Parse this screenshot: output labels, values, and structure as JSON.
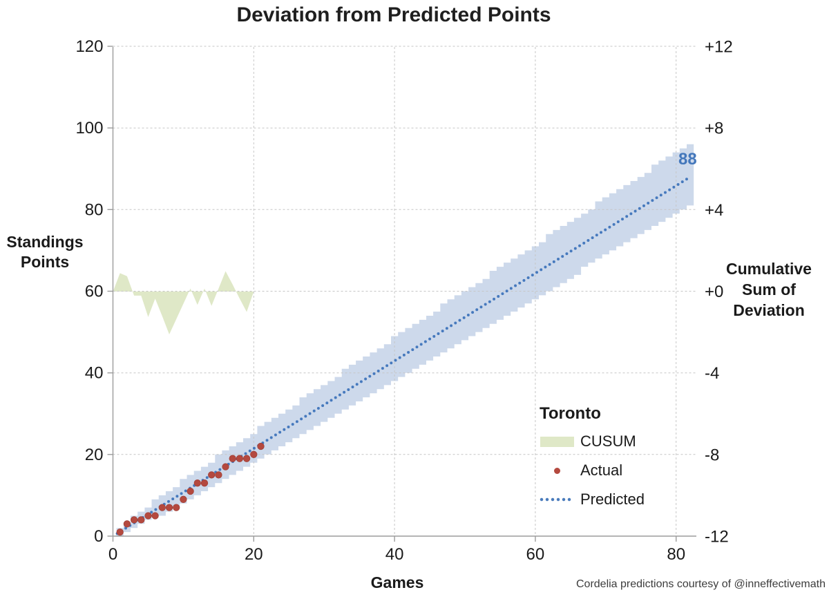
{
  "title": "Deviation from Predicted Points",
  "caption": "Cordelia predictions courtesy of @inneffectivemath",
  "end_label": {
    "text": "88",
    "color": "#4377bb"
  },
  "axes": {
    "left": {
      "title_lines": [
        "Standings",
        "Points"
      ],
      "ticks": [
        "120",
        "100",
        "80",
        "60",
        "40",
        "20",
        "0"
      ],
      "values": [
        120,
        100,
        80,
        60,
        40,
        20,
        0
      ],
      "range": [
        0,
        120
      ]
    },
    "right": {
      "title_lines": [
        "Cumulative",
        "Sum of",
        "Deviation"
      ],
      "ticks": [
        "+12",
        "+8",
        "+4",
        "+0",
        "-4",
        "-8",
        "-12"
      ],
      "values": [
        12,
        8,
        4,
        0,
        -4,
        -8,
        -12
      ],
      "range": [
        -12,
        12
      ]
    },
    "x": {
      "title": "Games",
      "ticks": [
        "0",
        "20",
        "40",
        "60",
        "80"
      ],
      "values": [
        0,
        20,
        40,
        60,
        80
      ],
      "range": [
        0,
        82.9
      ]
    }
  },
  "legend": {
    "title": "Toronto",
    "items": [
      {
        "label": "CUSUM",
        "type": "area",
        "color": "#dfe8c7"
      },
      {
        "label": "Actual",
        "type": "dot",
        "color": "#b4493f"
      },
      {
        "label": "Predicted",
        "type": "dotted-line",
        "color": "#4a7cbc"
      }
    ]
  },
  "chart_data": {
    "type": "combo",
    "title": "Deviation from Predicted Points",
    "xlabel": "Games",
    "ylabel_left": "Standings Points",
    "ylabel_right": "Cumulative Sum of Deviation",
    "xlim": [
      0,
      82.9
    ],
    "ylim_left": [
      0,
      120
    ],
    "ylim_right": [
      -12,
      12
    ],
    "grid": true,
    "legend_position": "right-middle",
    "series": [
      {
        "name": "CUSUM",
        "type": "area",
        "axis": "right",
        "color": "#dfe8c7",
        "x": [
          0,
          1,
          2,
          3,
          4,
          5,
          6,
          7,
          8,
          9,
          10,
          11,
          12,
          13,
          14,
          15,
          16,
          17,
          18,
          19,
          20
        ],
        "values": [
          0,
          0.9,
          0.75,
          -0.2,
          -0.2,
          -1.25,
          -0.35,
          -1.2,
          -2.1,
          -1.35,
          -0.6,
          0.15,
          -0.65,
          0.15,
          -0.7,
          0.15,
          1.0,
          0.35,
          -0.35,
          -1.0,
          0
        ]
      },
      {
        "name": "Actual",
        "type": "scatter",
        "axis": "left",
        "color": "#b4493f",
        "x": [
          1,
          2,
          3,
          4,
          5,
          6,
          7,
          8,
          9,
          10,
          11,
          12,
          13,
          14,
          15,
          16,
          17,
          18,
          19,
          20,
          21
        ],
        "values": [
          1,
          3,
          4,
          4,
          5,
          5,
          7,
          7,
          7,
          9,
          11,
          13,
          13,
          15,
          15,
          17,
          19,
          19,
          19,
          20,
          22
        ]
      },
      {
        "name": "Predicted",
        "type": "dotted-line",
        "axis": "left",
        "color": "#4679bd",
        "x_start": 0.6,
        "x_end": 82,
        "points_per_game": 1.0732,
        "end_value": 88,
        "end_value_label": "88"
      },
      {
        "name": "Prediction band",
        "type": "step-band",
        "axis": "left",
        "color": "#cdd9eb",
        "x_start": 1,
        "x_end": 82,
        "model": "predicted ± k·sqrt(games), rounded to integer points",
        "k_upper": 0.9,
        "k_lower": 0.78
      }
    ],
    "style": {
      "grid_color": "#c6c6c6",
      "axis_color": "#9b9b9b",
      "text_color": "#1a1a1a",
      "band_color": "#cdd9eb",
      "cusum_color": "#dfe8c7",
      "actual_color": "#b4493f",
      "predicted_color": "#4679bd"
    }
  }
}
